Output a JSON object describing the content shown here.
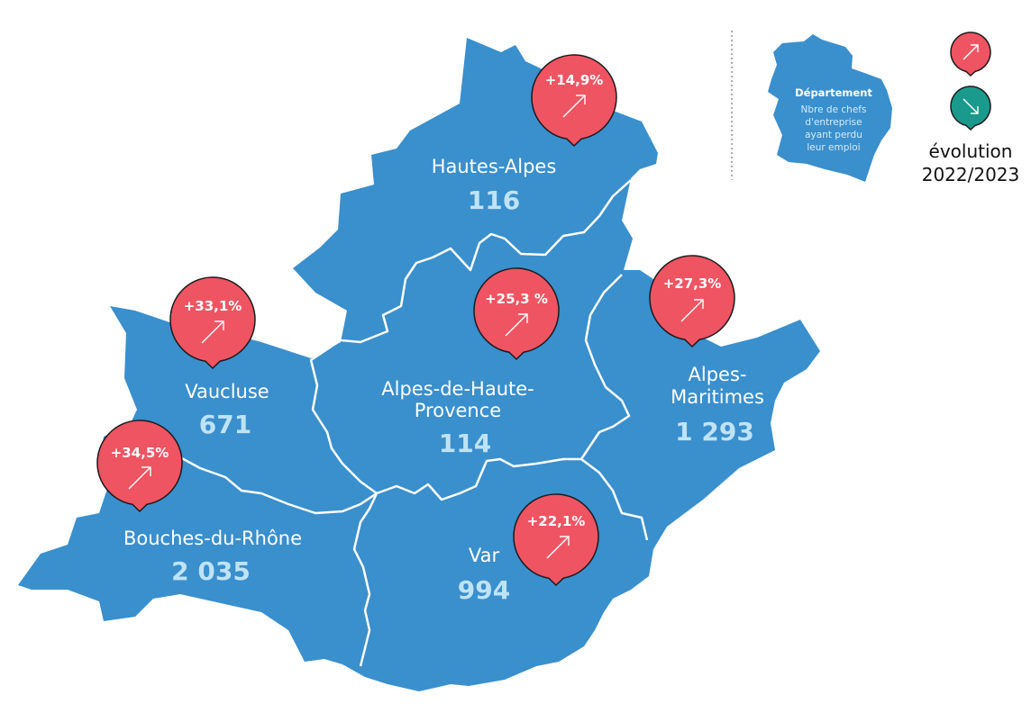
{
  "colors": {
    "region_fill": "#3a8fcd",
    "border": "#ffffff",
    "value_text": "#bfe3f6",
    "increase_pin": "#ef5462",
    "decrease_pin": "#1a9a8c"
  },
  "departements": [
    {
      "name": "Hautes-Alpes",
      "name_lines": [
        "Hautes-Alpes"
      ],
      "value": "116",
      "evolution": "+14,9%",
      "trend": "up"
    },
    {
      "name": "Alpes-de-Haute-Provence",
      "name_lines": [
        "Alpes-de-Haute-",
        "Provence"
      ],
      "value": "114",
      "evolution": "+25,3 %",
      "trend": "up"
    },
    {
      "name": "Alpes-Maritimes",
      "name_lines": [
        "Alpes-",
        "Maritimes"
      ],
      "value": "1 293",
      "evolution": "+27,3%",
      "trend": "up"
    },
    {
      "name": "Vaucluse",
      "name_lines": [
        "Vaucluse"
      ],
      "value": "671",
      "evolution": "+33,1%",
      "trend": "up"
    },
    {
      "name": "Bouches-du-Rhône",
      "name_lines": [
        "Bouches-du-Rhône"
      ],
      "value": "2 035",
      "evolution": "+34,5%",
      "trend": "up"
    },
    {
      "name": "Var",
      "name_lines": [
        "Var"
      ],
      "value": "994",
      "evolution": "+22,1%",
      "trend": "up"
    }
  ],
  "legend": {
    "title": "Département",
    "description_lines": [
      "Nbre de chefs",
      "d'entreprise",
      "ayant perdu",
      "leur emploi"
    ],
    "increase_icon": "arrow-up-right-icon",
    "decrease_icon": "arrow-down-right-icon",
    "evolution_lines": [
      "évolution",
      "2022/2023"
    ]
  }
}
